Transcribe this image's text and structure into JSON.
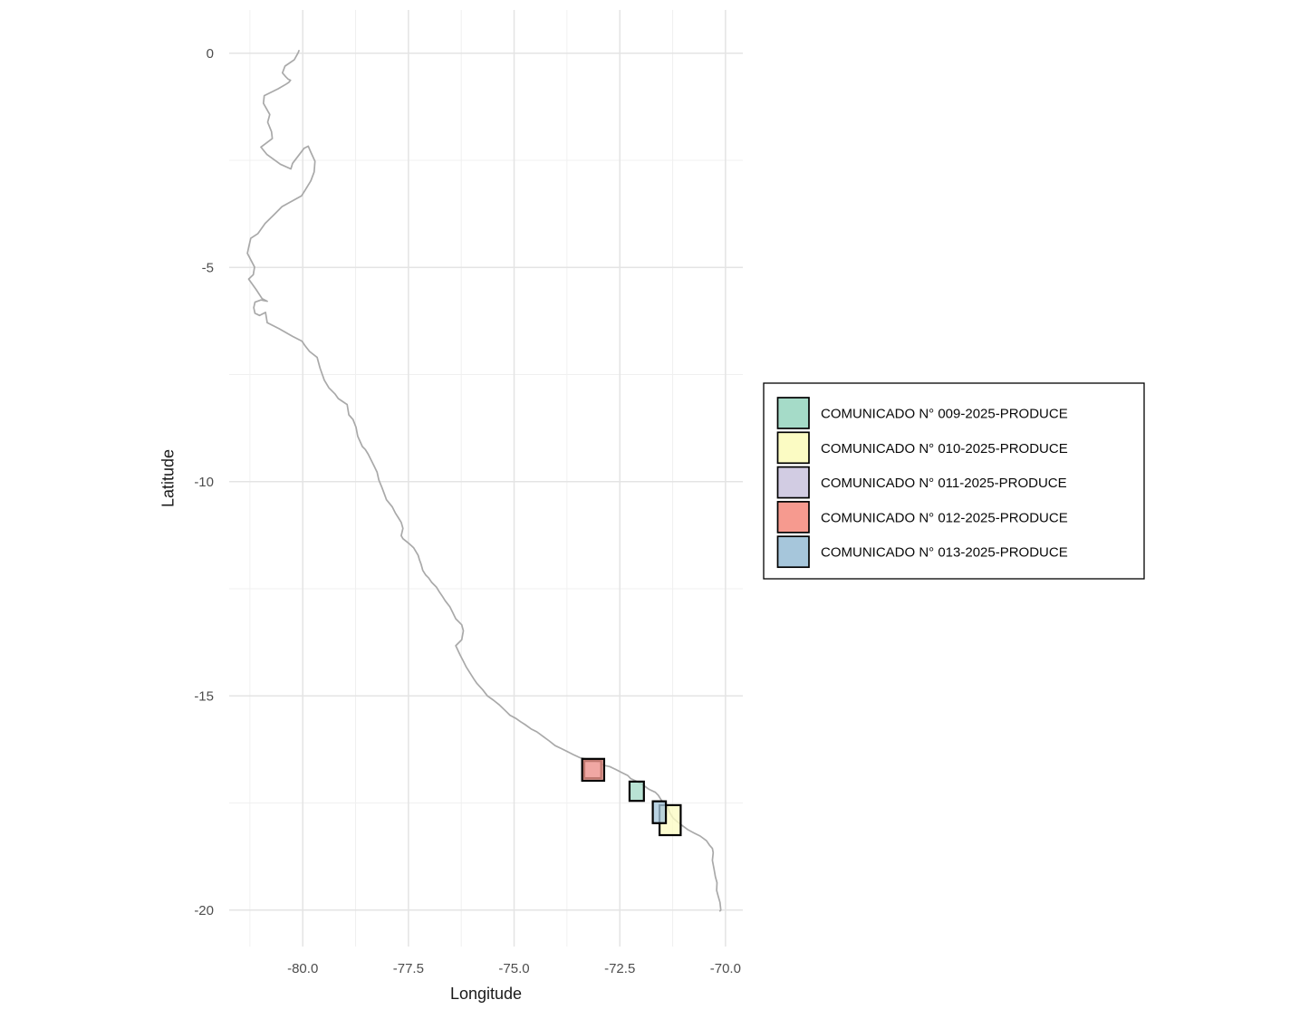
{
  "chart_data": {
    "type": "map",
    "title": "",
    "xlabel": "Longitude",
    "ylabel": "Latitude",
    "xlim": [
      -81.74,
      -69.59
    ],
    "ylim": [
      -20.85,
      1.01
    ],
    "x_ticks": {
      "values": [
        -80.0,
        -77.5,
        -75.0,
        -72.5,
        -70.0
      ],
      "labels": [
        "-80.0",
        "-77.5",
        "-75.0",
        "-72.5",
        "-70.0"
      ]
    },
    "y_ticks": {
      "values": [
        0,
        -5,
        -10,
        -15,
        -20
      ],
      "labels": [
        "0",
        "-5",
        "-10",
        "-15",
        "-20"
      ]
    },
    "x_minor": [
      -81.25,
      -78.75,
      -76.25,
      -73.75,
      -71.25
    ],
    "y_minor": [
      -2.5,
      -7.5,
      -12.5,
      -17.5
    ],
    "grid": {
      "on": true,
      "major_color": "#E4E4E4",
      "minor_color": "#F0F0F0"
    },
    "style": {
      "background": "#FFFFFF",
      "tick_label_color": "#4D4D4D",
      "axis_title_color": "#1A1A1A",
      "zone_border_color": "#000000",
      "zone_fill_opacity": 0.78
    },
    "coastline": {
      "name": "peru-coastline",
      "color": "#A9A9A9",
      "points": [
        [
          -80.09,
          0.06
        ],
        [
          -80.11,
          0.01
        ],
        [
          -80.2,
          -0.15
        ],
        [
          -80.42,
          -0.3
        ],
        [
          -80.48,
          -0.46
        ],
        [
          -80.4,
          -0.55
        ],
        [
          -80.35,
          -0.6
        ],
        [
          -80.29,
          -0.63
        ],
        [
          -80.33,
          -0.68
        ],
        [
          -80.39,
          -0.72
        ],
        [
          -80.58,
          -0.83
        ],
        [
          -80.91,
          -0.99
        ],
        [
          -80.93,
          -1.17
        ],
        [
          -80.78,
          -1.43
        ],
        [
          -80.83,
          -1.61
        ],
        [
          -80.74,
          -1.83
        ],
        [
          -80.72,
          -1.99
        ],
        [
          -80.99,
          -2.19
        ],
        [
          -80.85,
          -2.36
        ],
        [
          -80.53,
          -2.59
        ],
        [
          -80.28,
          -2.7
        ],
        [
          -80.24,
          -2.57
        ],
        [
          -79.97,
          -2.22
        ],
        [
          -79.87,
          -2.17
        ],
        [
          -79.81,
          -2.31
        ],
        [
          -79.71,
          -2.52
        ],
        [
          -79.73,
          -2.77
        ],
        [
          -79.81,
          -2.98
        ],
        [
          -79.94,
          -3.19
        ],
        [
          -80.03,
          -3.33
        ],
        [
          -80.49,
          -3.58
        ],
        [
          -80.67,
          -3.76
        ],
        [
          -80.89,
          -3.97
        ],
        [
          -81.06,
          -4.21
        ],
        [
          -81.23,
          -4.32
        ],
        [
          -81.28,
          -4.53
        ],
        [
          -81.31,
          -4.67
        ],
        [
          -81.14,
          -4.99
        ],
        [
          -81.17,
          -5.17
        ],
        [
          -81.28,
          -5.27
        ],
        [
          -81.1,
          -5.52
        ],
        [
          -80.96,
          -5.73
        ],
        [
          -80.84,
          -5.79
        ],
        [
          -80.99,
          -5.76
        ],
        [
          -81.13,
          -5.81
        ],
        [
          -81.16,
          -5.94
        ],
        [
          -81.13,
          -6.07
        ],
        [
          -81.02,
          -6.12
        ],
        [
          -80.88,
          -6.05
        ],
        [
          -80.84,
          -6.29
        ],
        [
          -80.56,
          -6.43
        ],
        [
          -80.24,
          -6.61
        ],
        [
          -80.02,
          -6.72
        ],
        [
          -79.95,
          -6.82
        ],
        [
          -79.84,
          -6.96
        ],
        [
          -79.66,
          -7.1
        ],
        [
          -79.59,
          -7.35
        ],
        [
          -79.49,
          -7.63
        ],
        [
          -79.38,
          -7.81
        ],
        [
          -79.24,
          -7.95
        ],
        [
          -79.16,
          -8.06
        ],
        [
          -78.95,
          -8.2
        ],
        [
          -78.91,
          -8.44
        ],
        [
          -78.81,
          -8.55
        ],
        [
          -78.74,
          -8.73
        ],
        [
          -78.7,
          -8.94
        ],
        [
          -78.59,
          -9.18
        ],
        [
          -78.52,
          -9.25
        ],
        [
          -78.45,
          -9.36
        ],
        [
          -78.38,
          -9.5
        ],
        [
          -78.31,
          -9.64
        ],
        [
          -78.24,
          -9.78
        ],
        [
          -78.2,
          -9.96
        ],
        [
          -78.13,
          -10.13
        ],
        [
          -78.06,
          -10.31
        ],
        [
          -78.02,
          -10.42
        ],
        [
          -77.88,
          -10.59
        ],
        [
          -77.81,
          -10.73
        ],
        [
          -77.74,
          -10.84
        ],
        [
          -77.67,
          -10.95
        ],
        [
          -77.63,
          -11.09
        ],
        [
          -77.67,
          -11.26
        ],
        [
          -77.63,
          -11.33
        ],
        [
          -77.49,
          -11.44
        ],
        [
          -77.38,
          -11.54
        ],
        [
          -77.27,
          -11.72
        ],
        [
          -77.24,
          -11.82
        ],
        [
          -77.2,
          -11.93
        ],
        [
          -77.16,
          -12.07
        ],
        [
          -77.09,
          -12.18
        ],
        [
          -77.02,
          -12.25
        ],
        [
          -76.95,
          -12.35
        ],
        [
          -76.84,
          -12.46
        ],
        [
          -76.77,
          -12.57
        ],
        [
          -76.7,
          -12.67
        ],
        [
          -76.63,
          -12.78
        ],
        [
          -76.52,
          -12.92
        ],
        [
          -76.45,
          -13.06
        ],
        [
          -76.38,
          -13.2
        ],
        [
          -76.24,
          -13.34
        ],
        [
          -76.2,
          -13.48
        ],
        [
          -76.24,
          -13.69
        ],
        [
          -76.38,
          -13.83
        ],
        [
          -76.28,
          -14.04
        ],
        [
          -76.2,
          -14.19
        ],
        [
          -76.13,
          -14.33
        ],
        [
          -75.95,
          -14.61
        ],
        [
          -75.88,
          -14.71
        ],
        [
          -75.74,
          -14.86
        ],
        [
          -75.63,
          -15.0
        ],
        [
          -75.49,
          -15.1
        ],
        [
          -75.35,
          -15.21
        ],
        [
          -75.17,
          -15.38
        ],
        [
          -75.1,
          -15.45
        ],
        [
          -74.95,
          -15.53
        ],
        [
          -74.85,
          -15.6
        ],
        [
          -74.74,
          -15.67
        ],
        [
          -74.6,
          -15.77
        ],
        [
          -74.46,
          -15.84
        ],
        [
          -74.31,
          -15.95
        ],
        [
          -74.17,
          -16.05
        ],
        [
          -74.03,
          -16.16
        ],
        [
          -73.88,
          -16.23
        ],
        [
          -73.74,
          -16.3
        ],
        [
          -73.6,
          -16.37
        ],
        [
          -73.45,
          -16.44
        ],
        [
          -73.31,
          -16.47
        ],
        [
          -73.09,
          -16.51
        ],
        [
          -72.88,
          -16.62
        ],
        [
          -72.74,
          -16.65
        ],
        [
          -72.59,
          -16.72
        ],
        [
          -72.45,
          -16.79
        ],
        [
          -72.31,
          -16.86
        ],
        [
          -72.24,
          -16.93
        ],
        [
          -72.09,
          -17.0
        ],
        [
          -71.95,
          -17.08
        ],
        [
          -71.81,
          -17.18
        ],
        [
          -71.66,
          -17.25
        ],
        [
          -71.59,
          -17.32
        ],
        [
          -71.52,
          -17.43
        ],
        [
          -71.45,
          -17.5
        ],
        [
          -71.38,
          -17.57
        ],
        [
          -71.35,
          -17.64
        ],
        [
          -71.31,
          -17.74
        ],
        [
          -71.24,
          -17.85
        ],
        [
          -71.16,
          -17.92
        ],
        [
          -71.02,
          -18.03
        ],
        [
          -70.88,
          -18.13
        ],
        [
          -70.74,
          -18.2
        ],
        [
          -70.6,
          -18.27
        ],
        [
          -70.45,
          -18.38
        ],
        [
          -70.38,
          -18.48
        ],
        [
          -70.31,
          -18.56
        ],
        [
          -70.29,
          -18.66
        ],
        [
          -70.31,
          -18.84
        ],
        [
          -70.27,
          -19.05
        ],
        [
          -70.24,
          -19.22
        ],
        [
          -70.2,
          -19.36
        ],
        [
          -70.21,
          -19.54
        ],
        [
          -70.17,
          -19.68
        ],
        [
          -70.13,
          -19.82
        ],
        [
          -70.11,
          -20.0
        ],
        [
          -70.13,
          -20.02
        ]
      ]
    },
    "zones": [
      {
        "id": "009",
        "label": "COMUNICADO N° 009-2025-PRODUCE",
        "color": "#A5DBC8",
        "lon": [
          -72.27,
          -71.93
        ],
        "lat": [
          -17.45,
          -17.0
        ]
      },
      {
        "id": "010",
        "label": "COMUNICADO N° 010-2025-PRODUCE",
        "color": "#FBFBC3",
        "lon": [
          -71.56,
          -71.06
        ],
        "lat": [
          -18.25,
          -17.55
        ]
      },
      {
        "id": "011",
        "label": "COMUNICADO N° 011-2025-PRODUCE",
        "color": "#D2CCE3",
        "lon": [
          -73.34,
          -72.94
        ],
        "lat": [
          -16.92,
          -16.52
        ]
      },
      {
        "id": "012",
        "label": "COMUNICADO N° 012-2025-PRODUCE",
        "color": "#F69A8F",
        "lon": [
          -73.39,
          -72.87
        ],
        "lat": [
          -16.98,
          -16.47
        ]
      },
      {
        "id": "013",
        "label": "COMUNICADO N° 013-2025-PRODUCE",
        "color": "#A6C6DB",
        "lon": [
          -71.72,
          -71.41
        ],
        "lat": [
          -17.97,
          -17.46
        ]
      }
    ],
    "legend": {
      "position": "right",
      "background": "#FFFFFF",
      "border_color": "#000000"
    }
  }
}
